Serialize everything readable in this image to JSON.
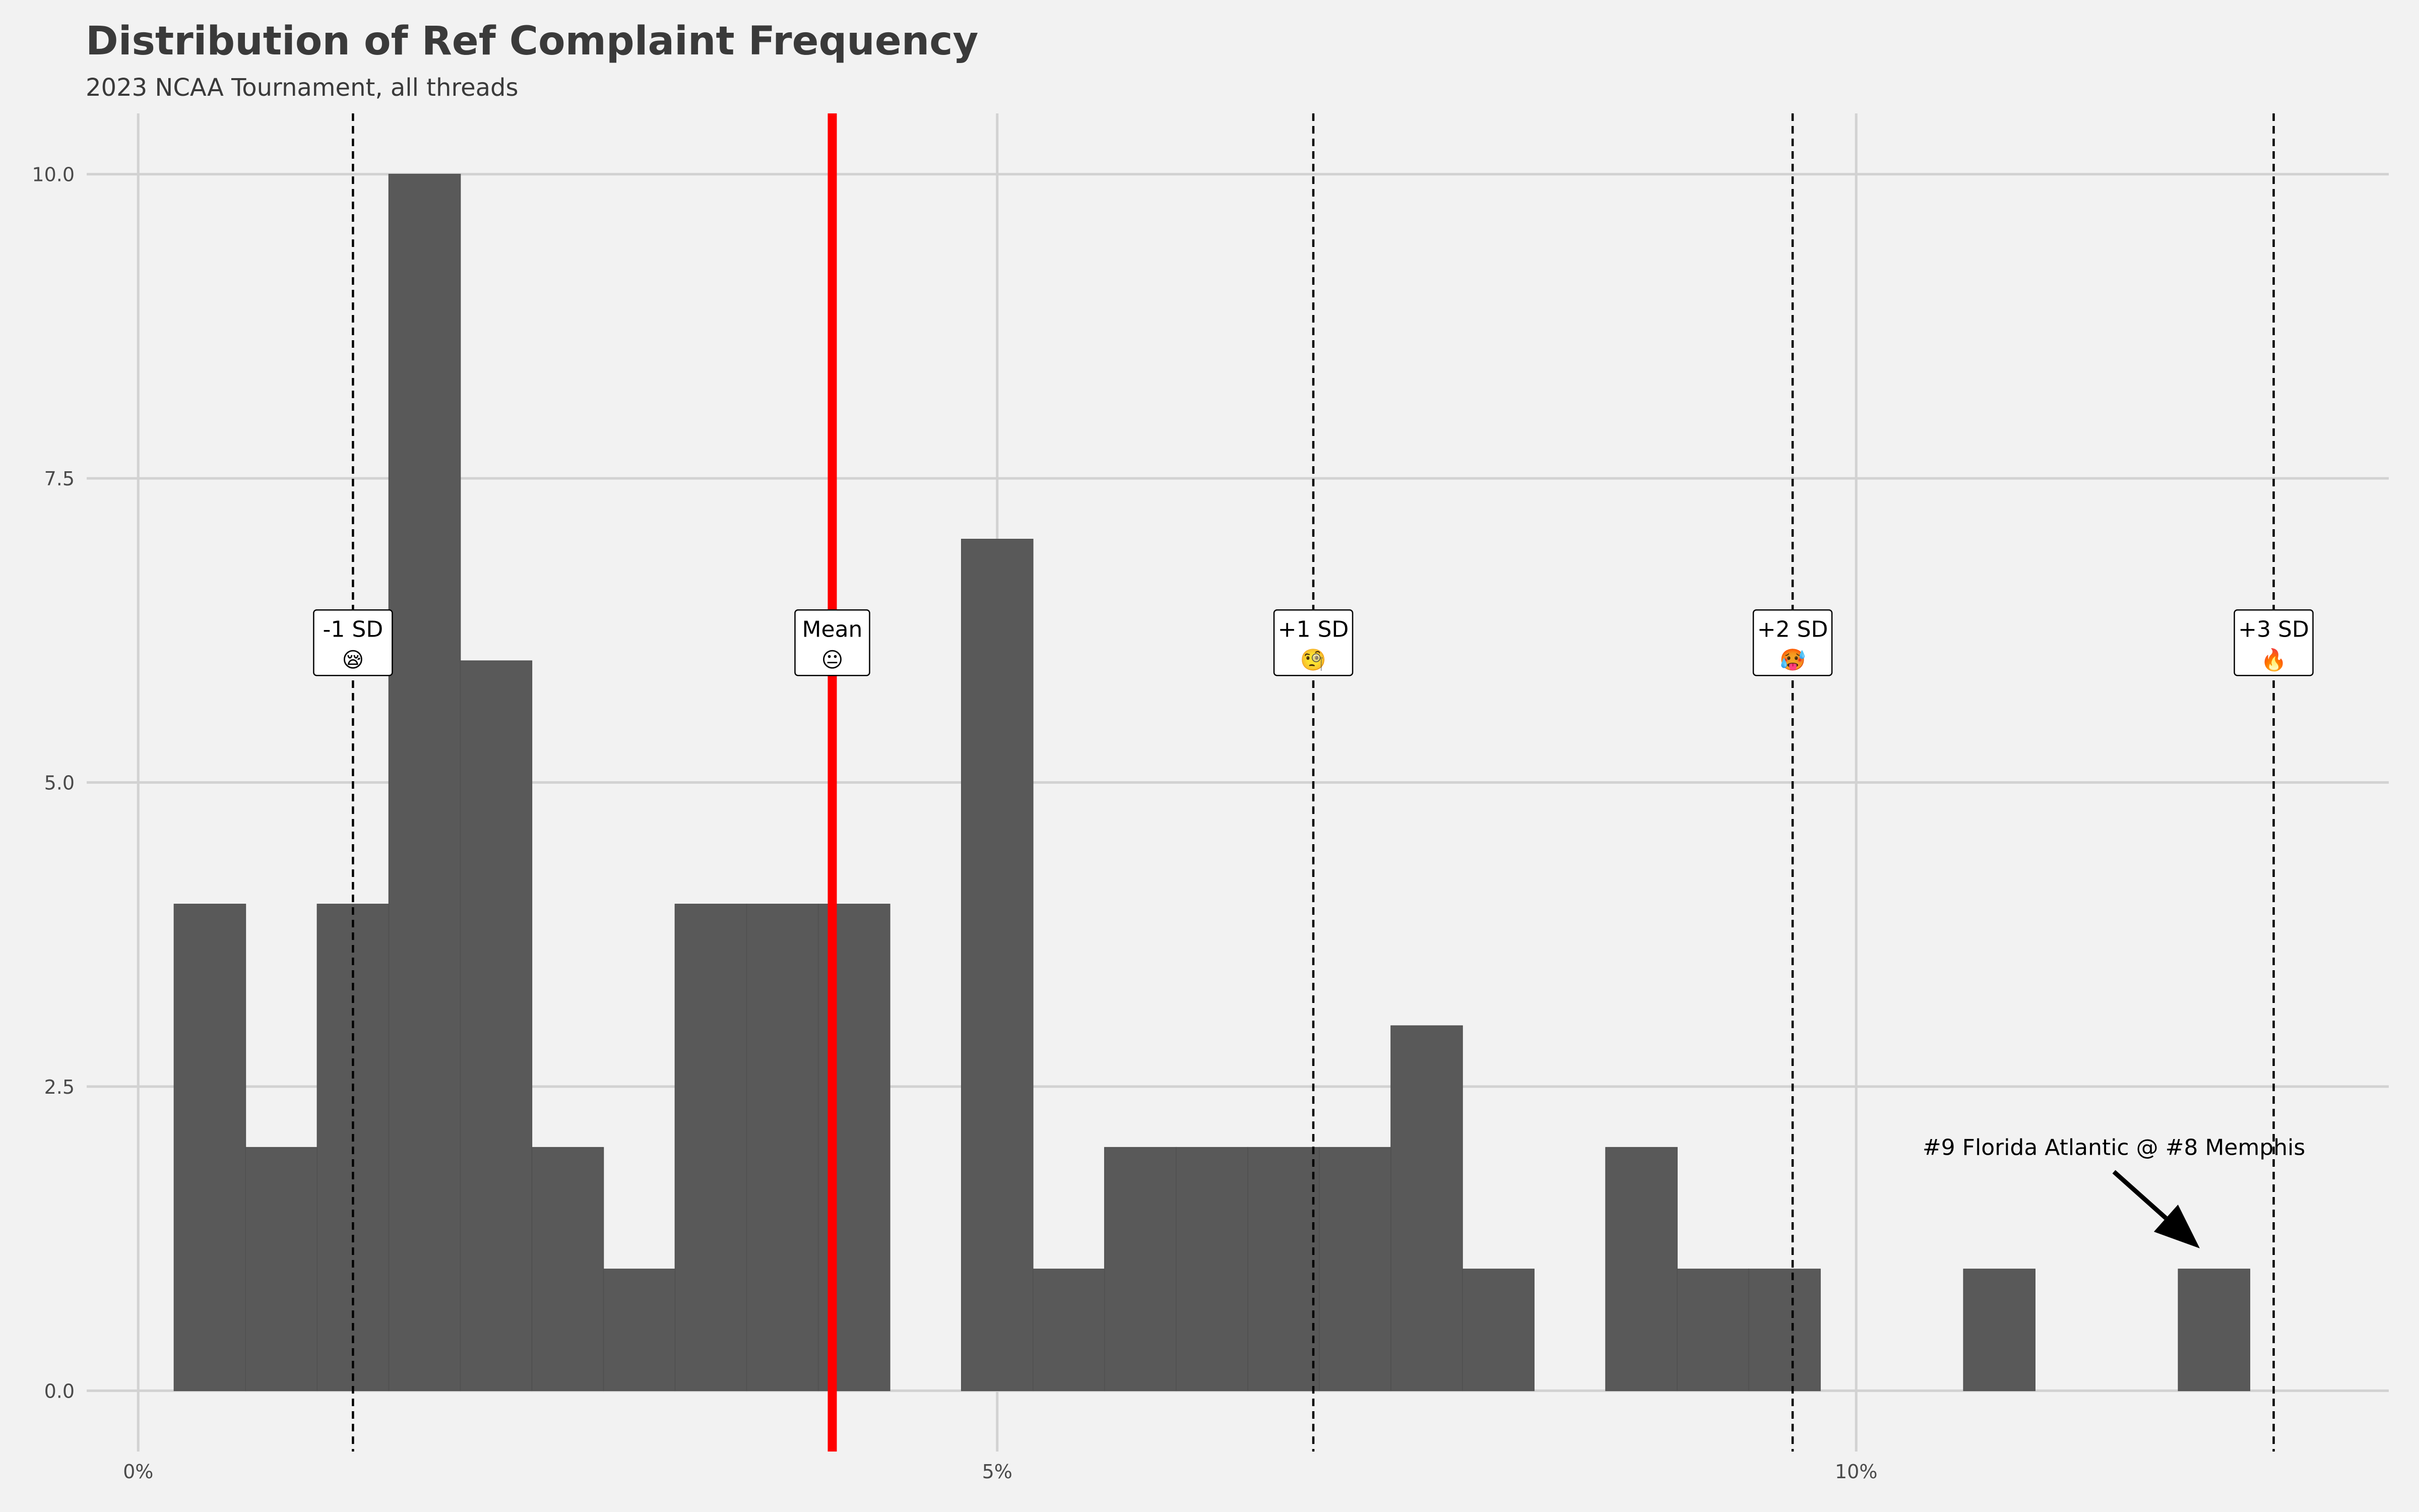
{
  "chart_data": {
    "type": "bar",
    "title": "Distribution of Ref Complaint Frequency",
    "subtitle": "2023 NCAA Tournament, all threads",
    "xlabel": "",
    "ylabel": "",
    "xlim": [
      -0.3,
      13.1
    ],
    "ylim": [
      -0.5,
      10.5
    ],
    "x_ticks": [
      {
        "value": 0,
        "label": "0%"
      },
      {
        "value": 5,
        "label": "5%"
      },
      {
        "value": 10,
        "label": "10%"
      }
    ],
    "y_ticks": [
      {
        "value": 0,
        "label": "0.0"
      },
      {
        "value": 2.5,
        "label": "2.5"
      },
      {
        "value": 5,
        "label": "5.0"
      },
      {
        "value": 7.5,
        "label": "7.5"
      },
      {
        "value": 10,
        "label": "10.0"
      }
    ],
    "bin_width": 0.4167,
    "bins": [
      {
        "x": 0.417,
        "count": 4
      },
      {
        "x": 0.833,
        "count": 2
      },
      {
        "x": 1.25,
        "count": 4
      },
      {
        "x": 1.667,
        "count": 10
      },
      {
        "x": 2.083,
        "count": 6
      },
      {
        "x": 2.5,
        "count": 2
      },
      {
        "x": 2.917,
        "count": 1
      },
      {
        "x": 3.333,
        "count": 4
      },
      {
        "x": 3.75,
        "count": 4
      },
      {
        "x": 4.167,
        "count": 4
      },
      {
        "x": 4.583,
        "count": 0
      },
      {
        "x": 5.0,
        "count": 7
      },
      {
        "x": 5.417,
        "count": 1
      },
      {
        "x": 5.833,
        "count": 2
      },
      {
        "x": 6.25,
        "count": 2
      },
      {
        "x": 6.667,
        "count": 2
      },
      {
        "x": 7.083,
        "count": 2
      },
      {
        "x": 7.5,
        "count": 3
      },
      {
        "x": 7.917,
        "count": 1
      },
      {
        "x": 8.333,
        "count": 0
      },
      {
        "x": 8.75,
        "count": 2
      },
      {
        "x": 9.167,
        "count": 1
      },
      {
        "x": 9.583,
        "count": 1
      },
      {
        "x": 10.0,
        "count": 0
      },
      {
        "x": 10.417,
        "count": 0
      },
      {
        "x": 10.833,
        "count": 1
      },
      {
        "x": 11.25,
        "count": 0
      },
      {
        "x": 11.667,
        "count": 0
      },
      {
        "x": 12.083,
        "count": 1
      }
    ],
    "mean_line": {
      "x": 4.04,
      "color": "#ff0000"
    },
    "sd_lines": [
      {
        "x": 1.25,
        "label": "-1 SD",
        "emoji": "😪"
      },
      {
        "x": 4.04,
        "label": "Mean",
        "emoji": "😐"
      },
      {
        "x": 6.84,
        "label": "+1 SD",
        "emoji": "🧐"
      },
      {
        "x": 9.63,
        "label": "+2 SD",
        "emoji": "🥵"
      },
      {
        "x": 12.43,
        "label": "+3 SD",
        "emoji": "🔥"
      }
    ],
    "label_y": 5.9,
    "annotation": {
      "text": "#9 Florida Atlantic @ #8 Memphis",
      "text_x": 11.5,
      "text_y": 2.0,
      "arrow_from": [
        11.5,
        1.8
      ],
      "arrow_to": [
        12.0,
        1.17
      ]
    },
    "colors": {
      "bar": "#595959",
      "grid": "#d2d2d2",
      "background": "#f2f2f2"
    },
    "grid": true,
    "legend": "none"
  }
}
